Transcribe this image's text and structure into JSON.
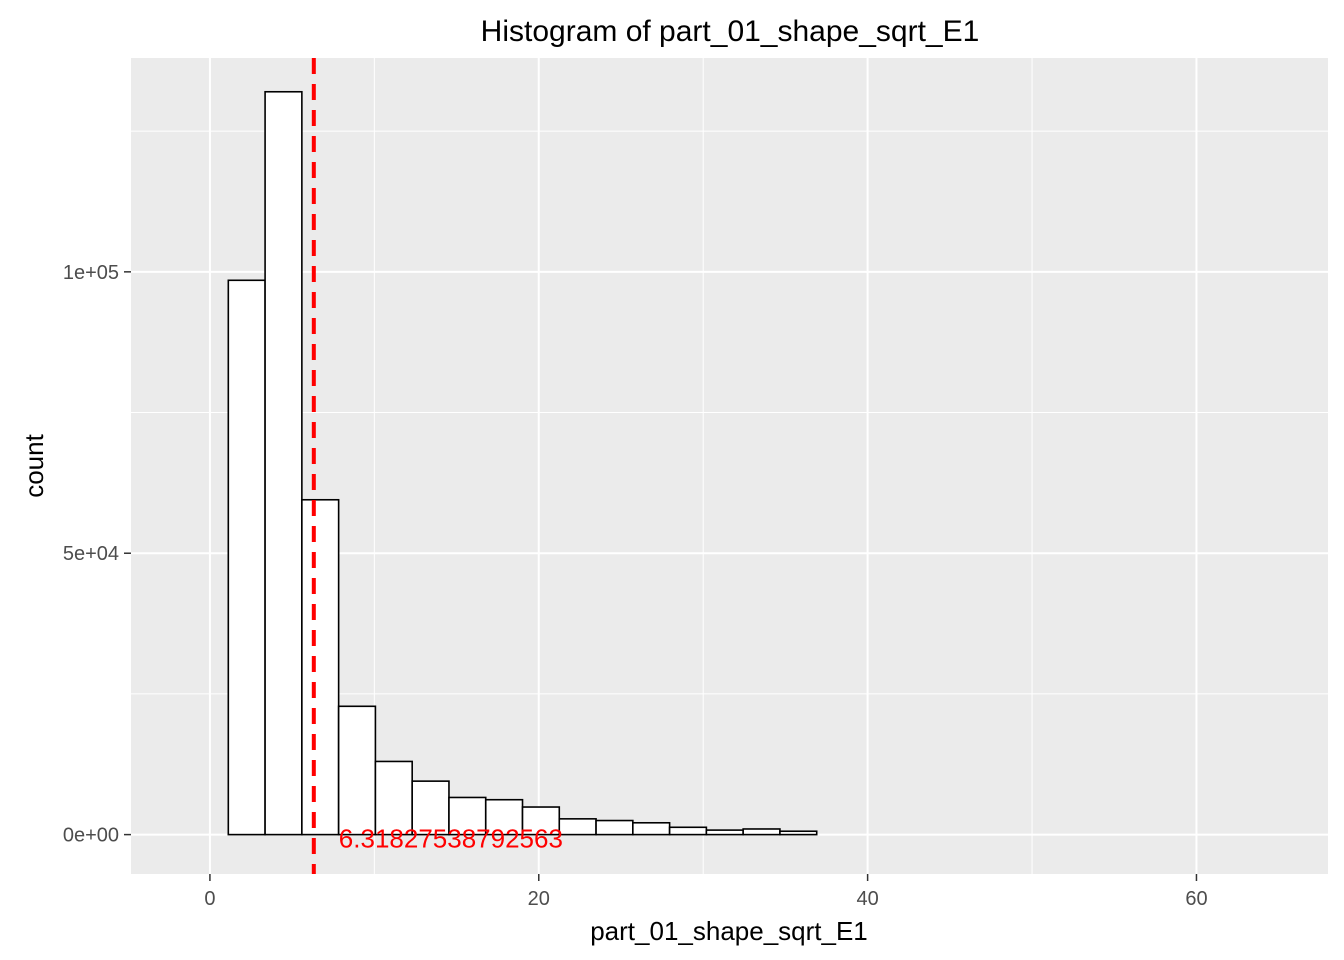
{
  "chart_data": {
    "type": "bar",
    "title": "Histogram of  part_01_shape_sqrt_E1",
    "xlabel": "part_01_shape_sqrt_E1",
    "ylabel": "count",
    "xlim": [
      -4.8,
      68.0
    ],
    "ylim": [
      -7000,
      138000
    ],
    "x_ticks": [
      0,
      20,
      40,
      60
    ],
    "x_tick_labels": [
      "0",
      "20",
      "40",
      "60"
    ],
    "y_ticks": [
      0,
      50000,
      100000
    ],
    "y_tick_labels": [
      "0e+00",
      "5e+04",
      "1e+05"
    ],
    "grid": true,
    "bin_width": 2.2366,
    "bins": [
      {
        "x0": -1.1183,
        "x1": 1.1183,
        "count": 0
      },
      {
        "x0": 1.1183,
        "x1": 3.3549,
        "count": 98500
      },
      {
        "x0": 3.3549,
        "x1": 5.5915,
        "count": 132000
      },
      {
        "x0": 5.5915,
        "x1": 7.8281,
        "count": 59500
      },
      {
        "x0": 7.8281,
        "x1": 10.0647,
        "count": 22800
      },
      {
        "x0": 10.0647,
        "x1": 12.3013,
        "count": 13000
      },
      {
        "x0": 12.3013,
        "x1": 14.5379,
        "count": 9500
      },
      {
        "x0": 14.5379,
        "x1": 16.7745,
        "count": 6600
      },
      {
        "x0": 16.7745,
        "x1": 19.0111,
        "count": 6200
      },
      {
        "x0": 19.0111,
        "x1": 21.2477,
        "count": 4900
      },
      {
        "x0": 21.2477,
        "x1": 23.4843,
        "count": 2800
      },
      {
        "x0": 23.4843,
        "x1": 25.7209,
        "count": 2500
      },
      {
        "x0": 25.7209,
        "x1": 27.9575,
        "count": 2100
      },
      {
        "x0": 27.9575,
        "x1": 30.1941,
        "count": 1300
      },
      {
        "x0": 30.1941,
        "x1": 32.4307,
        "count": 800
      },
      {
        "x0": 32.4307,
        "x1": 34.6673,
        "count": 1000
      },
      {
        "x0": 34.6673,
        "x1": 36.9039,
        "count": 600
      },
      {
        "x0": 36.9039,
        "x1": 39.1405,
        "count": 0
      },
      {
        "x0": 39.1405,
        "x1": 41.3771,
        "count": 0
      },
      {
        "x0": 41.3771,
        "x1": 43.6137,
        "count": 0
      },
      {
        "x0": 43.6137,
        "x1": 45.8503,
        "count": 0
      },
      {
        "x0": 45.8503,
        "x1": 48.0869,
        "count": 0
      },
      {
        "x0": 48.0869,
        "x1": 50.3235,
        "count": 0
      },
      {
        "x0": 50.3235,
        "x1": 52.5601,
        "count": 0
      },
      {
        "x0": 52.5601,
        "x1": 54.7967,
        "count": 0
      },
      {
        "x0": 54.7967,
        "x1": 57.0333,
        "count": 0
      },
      {
        "x0": 57.0333,
        "x1": 59.2699,
        "count": 0
      },
      {
        "x0": 59.2699,
        "x1": 61.5065,
        "count": 0
      },
      {
        "x0": 61.5065,
        "x1": 63.7431,
        "count": 0
      },
      {
        "x0": 63.7431,
        "x1": 65.9797,
        "count": 0
      }
    ],
    "mean_line": {
      "value": 6.31827538792563,
      "label": "6.31827538792563",
      "color": "#ff0000",
      "style": "dashed"
    },
    "colors": {
      "panel_background": "#ebebeb",
      "grid_major": "#ffffff",
      "bar_fill": "#ffffff",
      "bar_outline": "#000000"
    }
  }
}
